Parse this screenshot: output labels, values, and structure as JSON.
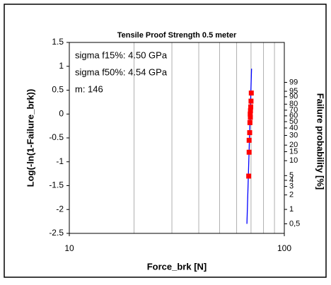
{
  "chart_data": {
    "type": "scatter",
    "title": "Tensile Proof Strength 0.5 meter",
    "xlabel": "Force_brk [N]",
    "ylabel": "Log(-ln(1-Failure_brk))",
    "y2label": "Failure probability [%]",
    "annotations": [
      "sigma  f15%: 4.50 GPa",
      "sigma  f50%: 4.54 GPa",
      "m: 146"
    ],
    "xscale": "log",
    "xlim": [
      10,
      100
    ],
    "xticks": [
      10,
      100
    ],
    "xgrid": [
      20,
      30,
      40,
      50,
      60,
      70,
      80,
      90
    ],
    "ylim": [
      -2.5,
      1.5
    ],
    "yticks": [
      1.5,
      1,
      0.5,
      0,
      -0.5,
      -1,
      -1.5,
      -2,
      -2.5
    ],
    "y2scale": "weibull",
    "y2lim": [
      0.316,
      100
    ],
    "y2ticks": [
      {
        "value": 0.5,
        "label": "0,5"
      },
      1,
      2,
      3,
      4,
      5,
      10,
      15,
      20,
      30,
      40,
      50,
      60,
      70,
      80,
      90,
      95,
      99
    ],
    "series": [
      {
        "mode": "markers",
        "color": "#ff0000",
        "x": [
          70.2,
          70.0,
          69.8,
          69.6,
          69.4,
          69.5,
          69.2,
          69.0,
          68.6,
          68.6,
          68.3
        ],
        "values": [
          0.44,
          0.27,
          0.15,
          0.07,
          0.0,
          -0.07,
          -0.18,
          -0.39,
          -0.55,
          -0.8,
          -1.3
        ]
      },
      {
        "mode": "line",
        "color": "#0000ff",
        "x": [
          67.0,
          70.4
        ],
        "values": [
          -2.3,
          0.95
        ]
      }
    ]
  }
}
